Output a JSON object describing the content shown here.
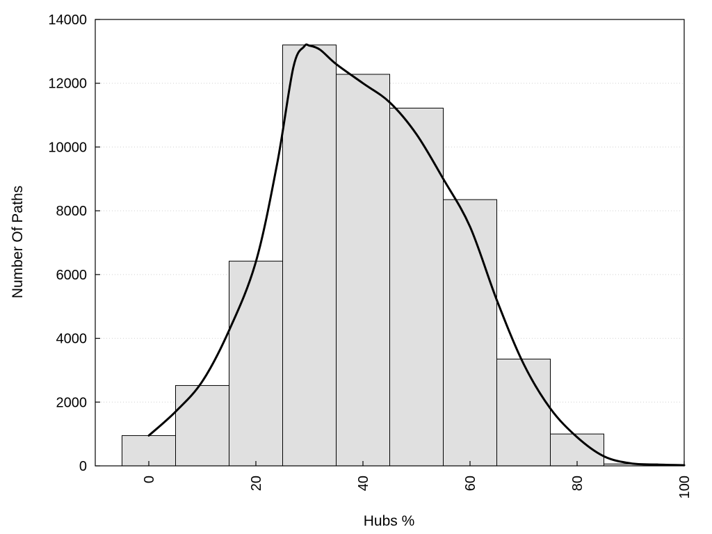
{
  "chart_data": {
    "type": "bar",
    "title": "",
    "xlabel": "Hubs %",
    "ylabel": "Number Of Paths",
    "xlim": [
      -10,
      100
    ],
    "ylim": [
      0,
      14000
    ],
    "xticks": [
      0,
      20,
      40,
      60,
      80,
      100
    ],
    "yticks": [
      0,
      2000,
      4000,
      6000,
      8000,
      10000,
      12000,
      14000
    ],
    "xtick_labels": [
      "0",
      "20",
      "40",
      "60",
      "80",
      "100"
    ],
    "ytick_labels": [
      "0",
      "2000",
      "4000",
      "6000",
      "8000",
      "10000",
      "12000",
      "14000"
    ],
    "grid": "horizontal-dotted",
    "legend": "none",
    "bar_color": "#e0e0e0",
    "bins": [
      {
        "x0": -5,
        "x1": 5,
        "value": 950
      },
      {
        "x0": 5,
        "x1": 15,
        "value": 2520
      },
      {
        "x0": 15,
        "x1": 25,
        "value": 6420
      },
      {
        "x0": 25,
        "x1": 35,
        "value": 13200
      },
      {
        "x0": 35,
        "x1": 45,
        "value": 12280
      },
      {
        "x0": 45,
        "x1": 55,
        "value": 11220
      },
      {
        "x0": 55,
        "x1": 65,
        "value": 8350
      },
      {
        "x0": 65,
        "x1": 75,
        "value": 3350
      },
      {
        "x0": 75,
        "x1": 85,
        "value": 1000
      },
      {
        "x0": 85,
        "x1": 95,
        "value": 60
      }
    ],
    "density_curve": {
      "x": [
        0,
        5,
        10,
        15,
        20,
        24,
        27,
        29,
        30,
        32,
        35,
        40,
        45,
        50,
        55,
        60,
        65,
        70,
        75,
        80,
        85,
        90,
        95,
        100
      ],
      "y": [
        950,
        1700,
        2650,
        4250,
        6400,
        9500,
        12500,
        13150,
        13180,
        13050,
        12600,
        12000,
        11400,
        10400,
        9000,
        7500,
        5200,
        3200,
        1800,
        900,
        300,
        80,
        40,
        20
      ]
    }
  }
}
